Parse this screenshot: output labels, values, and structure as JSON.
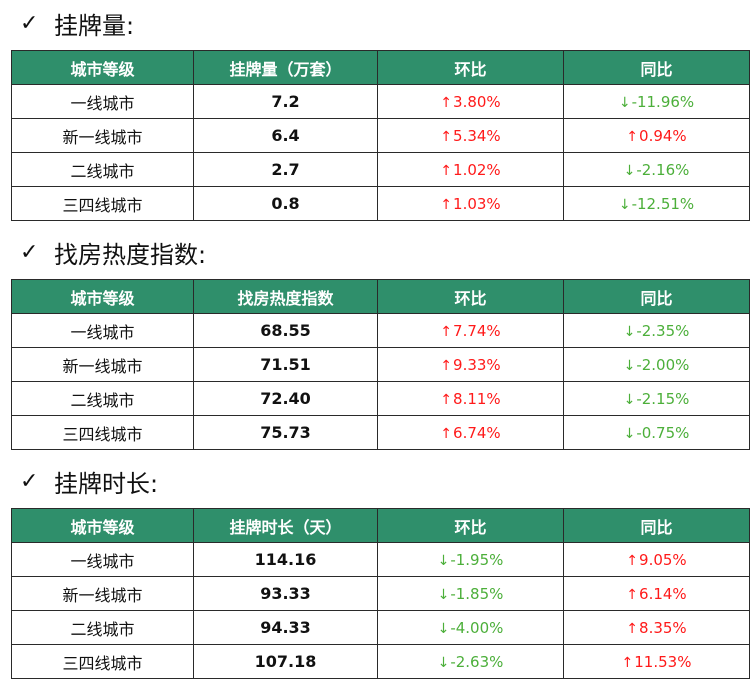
{
  "sections": [
    {
      "title": "挂牌量:",
      "headers": [
        "城市等级",
        "挂牌量（万套）",
        "环比",
        "同比"
      ],
      "rows": [
        {
          "tier": "一线城市",
          "value": "7.2",
          "mom": {
            "dir": "up",
            "text": "3.80%"
          },
          "yoy": {
            "dir": "down",
            "text": "-11.96%"
          }
        },
        {
          "tier": "新一线城市",
          "value": "6.4",
          "mom": {
            "dir": "up",
            "text": "5.34%"
          },
          "yoy": {
            "dir": "up",
            "text": "0.94%"
          }
        },
        {
          "tier": "二线城市",
          "value": "2.7",
          "mom": {
            "dir": "up",
            "text": "1.02%"
          },
          "yoy": {
            "dir": "down",
            "text": "-2.16%"
          }
        },
        {
          "tier": "三四线城市",
          "value": "0.8",
          "mom": {
            "dir": "up",
            "text": "1.03%"
          },
          "yoy": {
            "dir": "down",
            "text": "-12.51%"
          }
        }
      ]
    },
    {
      "title": "找房热度指数:",
      "headers": [
        "城市等级",
        "找房热度指数",
        "环比",
        "同比"
      ],
      "rows": [
        {
          "tier": "一线城市",
          "value": "68.55",
          "mom": {
            "dir": "up",
            "text": "7.74%"
          },
          "yoy": {
            "dir": "down",
            "text": "-2.35%"
          }
        },
        {
          "tier": "新一线城市",
          "value": "71.51",
          "mom": {
            "dir": "up",
            "text": "9.33%"
          },
          "yoy": {
            "dir": "down",
            "text": "-2.00%"
          }
        },
        {
          "tier": "二线城市",
          "value": "72.40",
          "mom": {
            "dir": "up",
            "text": "8.11%"
          },
          "yoy": {
            "dir": "down",
            "text": "-2.15%"
          }
        },
        {
          "tier": "三四线城市",
          "value": "75.73",
          "mom": {
            "dir": "up",
            "text": "6.74%"
          },
          "yoy": {
            "dir": "down",
            "text": "-0.75%"
          }
        }
      ]
    },
    {
      "title": "挂牌时长:",
      "headers": [
        "城市等级",
        "挂牌时长（天）",
        "环比",
        "同比"
      ],
      "rows": [
        {
          "tier": "一线城市",
          "value": "114.16",
          "mom": {
            "dir": "down",
            "text": "-1.95%"
          },
          "yoy": {
            "dir": "up",
            "text": "9.05%"
          }
        },
        {
          "tier": "新一线城市",
          "value": "93.33",
          "mom": {
            "dir": "down",
            "text": "-1.85%"
          },
          "yoy": {
            "dir": "up",
            "text": "6.14%"
          }
        },
        {
          "tier": "二线城市",
          "value": "94.33",
          "mom": {
            "dir": "down",
            "text": "-4.00%"
          },
          "yoy": {
            "dir": "up",
            "text": "8.35%"
          }
        },
        {
          "tier": "三四线城市",
          "value": "107.18",
          "mom": {
            "dir": "down",
            "text": "-2.63%"
          },
          "yoy": {
            "dir": "up",
            "text": "11.53%"
          }
        }
      ]
    }
  ]
}
